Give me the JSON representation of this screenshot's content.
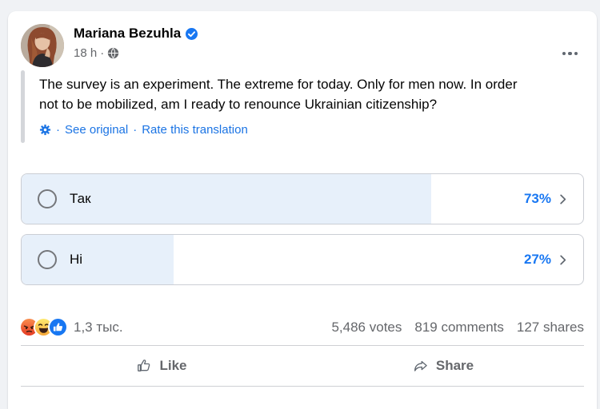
{
  "colors": {
    "accent_blue": "#1877F2",
    "link_blue": "#1B74E4",
    "poll_fill": "#E7F0FA",
    "page_bg": "#F0F2F5",
    "text_primary": "#050505",
    "text_secondary": "#65676B"
  },
  "header": {
    "author": "Mariana Bezuhla",
    "verified_icon": "verified-badge",
    "timestamp": "18 h",
    "separator": "·",
    "privacy_icon": "globe",
    "menu_icon": "ellipsis"
  },
  "post": {
    "lines": [
      "The survey is an experiment. The extreme for today. Only for men now. In order",
      "not to be mobilized, am I ready to renounce Ukrainian citizenship?"
    ],
    "translation": {
      "gear_icon": "gear",
      "sep1": "·",
      "see_original": "See original",
      "sep2": "·",
      "rate": "Rate this translation"
    }
  },
  "poll": {
    "options": [
      {
        "label": "Так",
        "percent_label": "73%",
        "fill_percent": 73
      },
      {
        "label": "Ні",
        "percent_label": "27%",
        "fill_percent": 27
      }
    ]
  },
  "stats": {
    "reaction_icons": [
      "angry",
      "haha",
      "like"
    ],
    "reaction_count": "1,3 тыс.",
    "votes": "5,486 votes",
    "comments": "819 comments",
    "shares": "127 shares"
  },
  "actions": {
    "like": "Like",
    "share": "Share"
  }
}
